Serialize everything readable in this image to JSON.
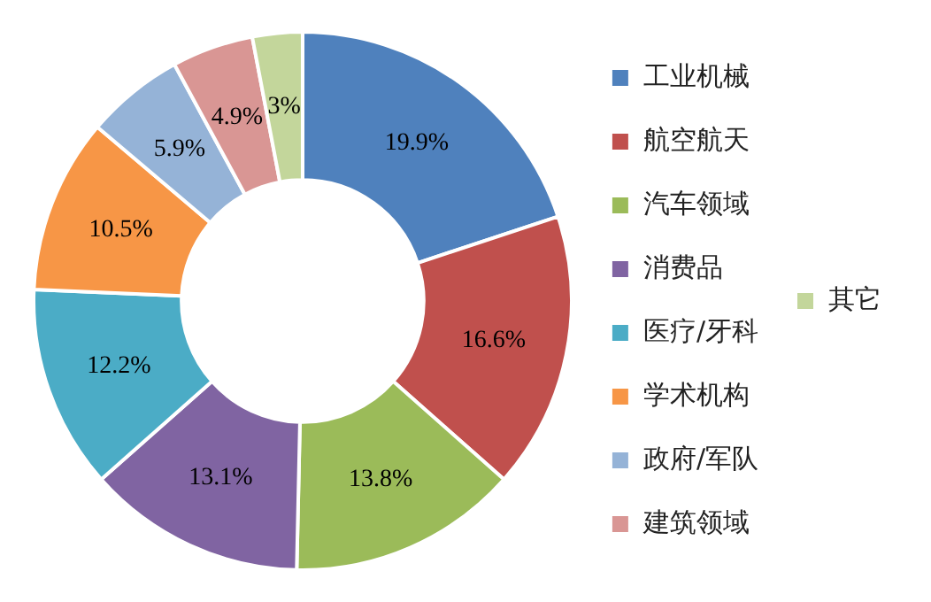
{
  "chart_data": {
    "type": "donut",
    "categories": [
      "工业机械",
      "航空航天",
      "汽车领域",
      "消费品",
      "医疗/牙科",
      "学术机构",
      "政府/军队",
      "建筑领域",
      "其它"
    ],
    "values": [
      19.9,
      16.6,
      13.8,
      13.1,
      12.2,
      10.5,
      5.9,
      4.9,
      3
    ],
    "colors": [
      "#4f81bd",
      "#c0504d",
      "#9bbb59",
      "#8064a2",
      "#4bacc6",
      "#f79646",
      "#95b3d7",
      "#d99694",
      "#c3d69b"
    ],
    "value_labels": [
      "19.9%",
      "16.6%",
      "13.8%",
      "13.1%",
      "12.2%",
      "10.5%",
      "5.9%",
      "4.9%",
      "3%"
    ],
    "legend": "right"
  }
}
